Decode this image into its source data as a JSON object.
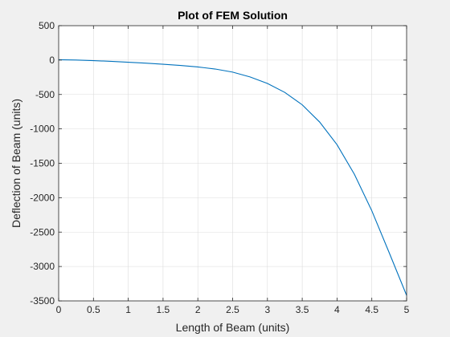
{
  "chart_data": {
    "type": "line",
    "title": "Plot of FEM Solution",
    "xlabel": "Length of Beam (units)",
    "ylabel": "Deflection of Beam (units)",
    "xlim": [
      0,
      5
    ],
    "ylim": [
      -3500,
      500
    ],
    "xticks": [
      0,
      0.5,
      1,
      1.5,
      2,
      2.5,
      3,
      3.5,
      4,
      4.5,
      5
    ],
    "xtick_labels": [
      "0",
      "0.5",
      "1",
      "1.5",
      "2",
      "2.5",
      "3",
      "3.5",
      "4",
      "4.5",
      "5"
    ],
    "yticks": [
      500,
      0,
      -500,
      -1000,
      -1500,
      -2000,
      -2500,
      -3000,
      -3500
    ],
    "ytick_labels": [
      "500",
      "0",
      "-500",
      "-1000",
      "-1500",
      "-2000",
      "-2500",
      "-3000",
      "-3500"
    ],
    "grid": true,
    "colors": {
      "line": "#0072bd",
      "grid": "#dcdcdc",
      "axes_bg": "#ffffff",
      "figure_bg": "#f0f0f0"
    },
    "series": [
      {
        "x": [
          0,
          0.25,
          0.5,
          0.75,
          1,
          1.25,
          1.5,
          1.75,
          2,
          2.25,
          2.5,
          2.75,
          3,
          3.25,
          3.5,
          3.75,
          4,
          4.25,
          4.5,
          4.75,
          5
        ],
        "y": [
          5,
          1,
          -8,
          -18,
          -31,
          -45,
          -60,
          -78,
          -100,
          -130,
          -175,
          -245,
          -340,
          -470,
          -650,
          -900,
          -1230,
          -1660,
          -2190,
          -2800,
          -3420
        ]
      }
    ]
  }
}
